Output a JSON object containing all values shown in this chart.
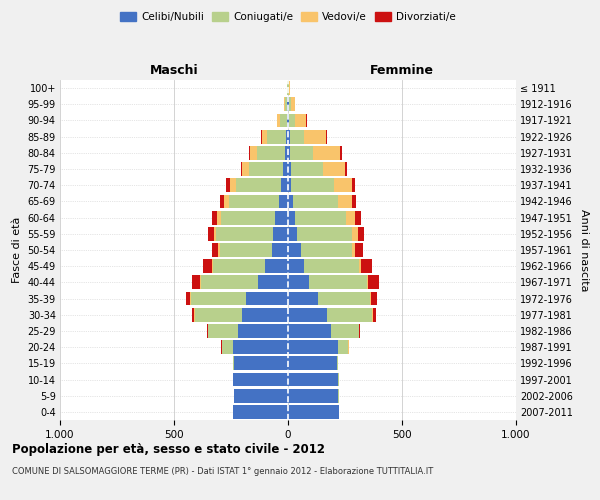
{
  "age_groups": [
    "0-4",
    "5-9",
    "10-14",
    "15-19",
    "20-24",
    "25-29",
    "30-34",
    "35-39",
    "40-44",
    "45-49",
    "50-54",
    "55-59",
    "60-64",
    "65-69",
    "70-74",
    "75-79",
    "80-84",
    "85-89",
    "90-94",
    "95-99",
    "100+"
  ],
  "anni_nascita": [
    "2007-2011",
    "2002-2006",
    "1997-2001",
    "1992-1996",
    "1987-1991",
    "1982-1986",
    "1977-1981",
    "1972-1976",
    "1967-1971",
    "1962-1966",
    "1957-1961",
    "1952-1956",
    "1947-1951",
    "1942-1946",
    "1937-1941",
    "1932-1936",
    "1927-1931",
    "1922-1926",
    "1917-1921",
    "1912-1916",
    "≤ 1911"
  ],
  "maschi": {
    "celibi": [
      240,
      235,
      240,
      235,
      240,
      220,
      200,
      185,
      130,
      100,
      70,
      65,
      55,
      40,
      30,
      20,
      15,
      10,
      5,
      3,
      2
    ],
    "coniugati": [
      0,
      3,
      3,
      5,
      50,
      130,
      210,
      240,
      250,
      230,
      230,
      250,
      240,
      220,
      200,
      150,
      120,
      80,
      30,
      8,
      2
    ],
    "vedovi": [
      0,
      0,
      0,
      0,
      1,
      2,
      2,
      3,
      5,
      5,
      5,
      10,
      15,
      20,
      25,
      30,
      30,
      25,
      15,
      5,
      1
    ],
    "divorziati": [
      0,
      0,
      0,
      0,
      2,
      5,
      10,
      20,
      35,
      40,
      30,
      25,
      25,
      20,
      15,
      8,
      5,
      2,
      0,
      0,
      0
    ]
  },
  "femmine": {
    "nubili": [
      225,
      220,
      220,
      215,
      220,
      190,
      170,
      130,
      90,
      70,
      55,
      40,
      30,
      20,
      15,
      12,
      10,
      8,
      5,
      3,
      2
    ],
    "coniugate": [
      0,
      2,
      2,
      5,
      45,
      120,
      200,
      230,
      255,
      240,
      225,
      240,
      225,
      200,
      185,
      140,
      100,
      60,
      25,
      8,
      2
    ],
    "vedove": [
      0,
      0,
      0,
      0,
      1,
      2,
      3,
      5,
      8,
      10,
      15,
      25,
      40,
      60,
      80,
      100,
      120,
      100,
      50,
      20,
      3
    ],
    "divorziate": [
      0,
      0,
      0,
      0,
      2,
      5,
      12,
      25,
      45,
      50,
      35,
      30,
      25,
      20,
      15,
      8,
      5,
      3,
      2,
      0,
      0
    ]
  },
  "colors": {
    "celibi_nubili": "#4472c4",
    "coniugati": "#b8d08c",
    "vedovi": "#f9c46b",
    "divorziati": "#cc1111"
  },
  "title": "Popolazione per età, sesso e stato civile - 2012",
  "subtitle": "COMUNE DI SALSOMAGGIORE TERME (PR) - Dati ISTAT 1° gennaio 2012 - Elaborazione TUTTITALIA.IT",
  "xlabel_left": "Maschi",
  "xlabel_right": "Femmine",
  "ylabel_left": "Fasce di età",
  "ylabel_right": "Anni di nascita",
  "xlim": 1000,
  "xticks": [
    -1000,
    -500,
    0,
    500,
    1000
  ],
  "xticklabels": [
    "1.000",
    "500",
    "0",
    "500",
    "1.000"
  ],
  "legend_labels": [
    "Celibi/Nubili",
    "Coniugati/e",
    "Vedovi/e",
    "Divorziati/e"
  ],
  "bg_color": "#f0f0f0",
  "plot_bg": "#ffffff"
}
